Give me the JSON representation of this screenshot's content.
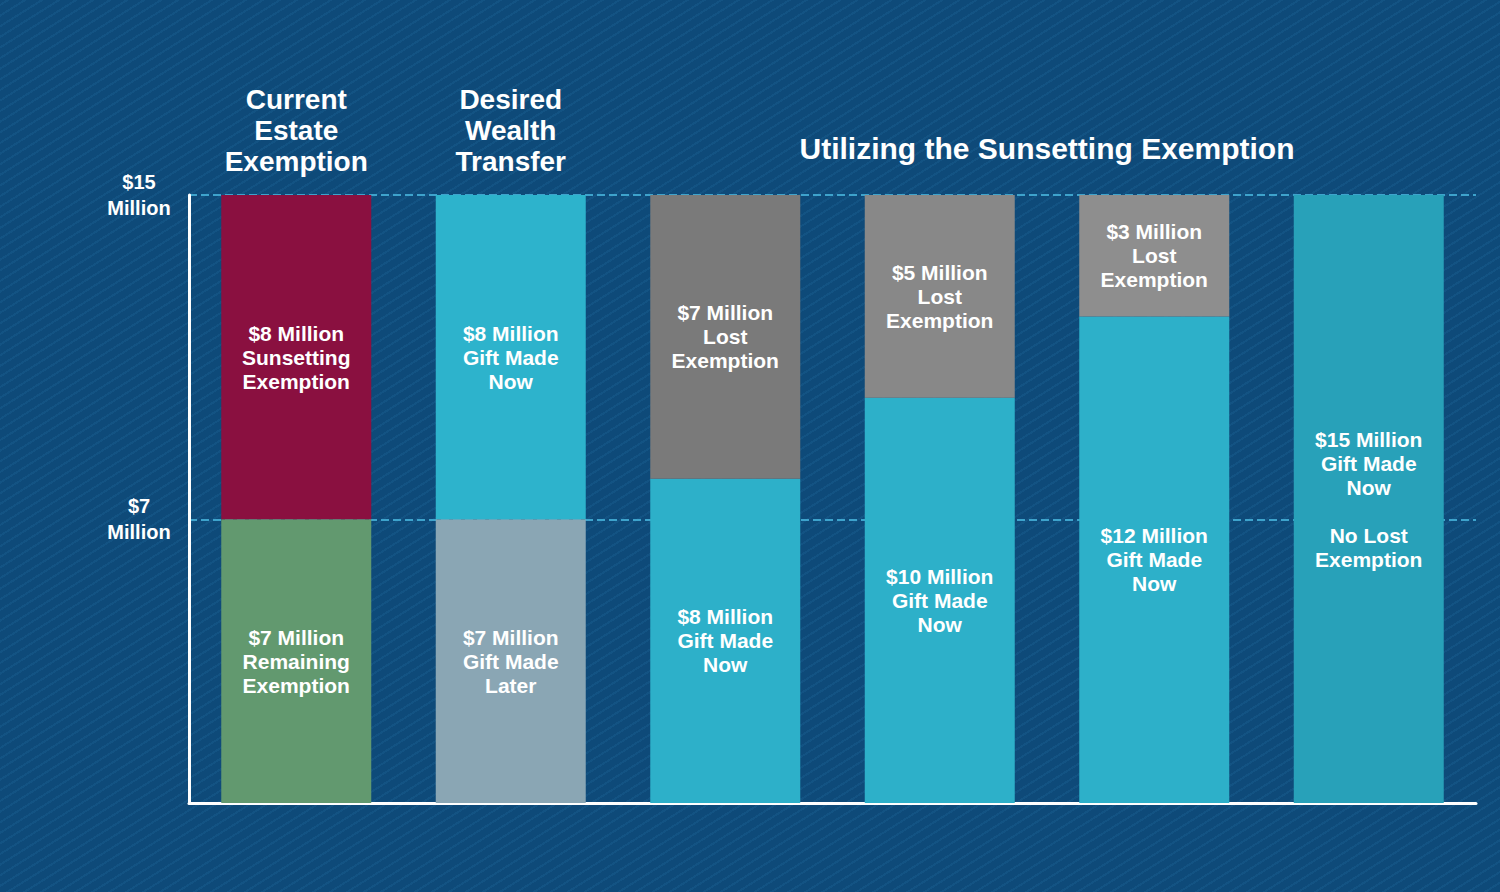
{
  "chart_data": {
    "type": "bar",
    "stacked": true,
    "data_labels": true,
    "grid": true,
    "annotation": "Utilizing the Sunsetting Exemption",
    "categories": [
      "Current\nEstate\nExemption",
      "Desired\nWealth\nTransfer",
      null,
      null,
      null,
      null
    ],
    "series": [
      {
        "values": [
          7,
          7,
          8,
          10,
          12,
          15
        ],
        "colors": [
          "#62996f",
          "#8aa6b4",
          "#2db0c9",
          "#2db0c9",
          "#2db0c9",
          "#28a1b9"
        ],
        "value_labels": [
          "$7 Million\nRemaining\nExemption",
          "$7 Million\nGift Made\nLater",
          "$8 Million\nGift Made\nNow",
          "$10 Million\nGift Made\nNow",
          "$12 Million\nGift Made\nNow",
          "$15 Million\nGift Made\nNow\n\nNo Lost\nExemption"
        ]
      },
      {
        "values": [
          8,
          8,
          7,
          5,
          3,
          null
        ],
        "colors": [
          "#8a1040",
          "#2db3cc",
          "#7a7a7a",
          "#888888",
          "#8e8e8e",
          null
        ],
        "value_labels": [
          "$8 Million\nSunsetting\nExemption",
          "$8 Million\nGift Made\nNow",
          "$7 Million\nLost\nExemption",
          "$5 Million\nLost\nExemption",
          "$3 Million\nLost\nExemption",
          null
        ]
      }
    ],
    "ylim": [
      0,
      15
    ],
    "yticks": [
      {
        "value": 7,
        "label": "$7\nMillion"
      },
      {
        "value": 15,
        "label": "$15\nMillion"
      }
    ]
  }
}
